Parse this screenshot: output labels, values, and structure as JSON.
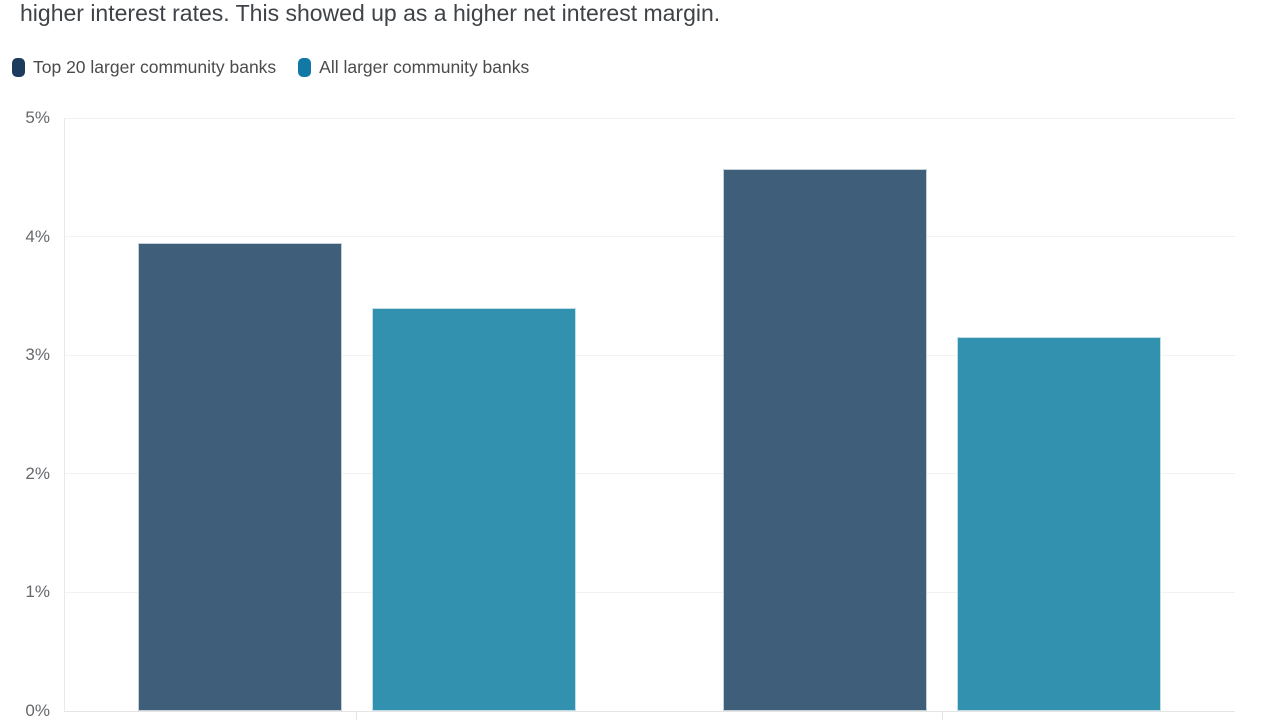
{
  "page": {
    "background": "#ffffff"
  },
  "header": {
    "text": "higher interest rates. This showed up as a higher net interest margin."
  },
  "legend": {
    "items": [
      {
        "label": "Top 20 larger community banks",
        "marker_color": "#1c3b5d"
      },
      {
        "label": "All larger community banks",
        "marker_color": "#1278a5"
      }
    ]
  },
  "chart_data": {
    "type": "bar",
    "categories": [
      "",
      ""
    ],
    "series": [
      {
        "name": "Top 20 larger community banks",
        "color": "#3f5e7a",
        "values": [
          3.95,
          4.57
        ]
      },
      {
        "name": "All larger community banks",
        "color": "#3191af",
        "values": [
          3.4,
          3.15
        ]
      }
    ],
    "title": "",
    "xlabel": "",
    "ylabel": "",
    "ylim": [
      0,
      5
    ],
    "yticks": [
      "0%",
      "1%",
      "2%",
      "3%",
      "4%",
      "5%"
    ],
    "grid": true,
    "legend_position": "top-left",
    "x_axis_labels_visible": false
  }
}
